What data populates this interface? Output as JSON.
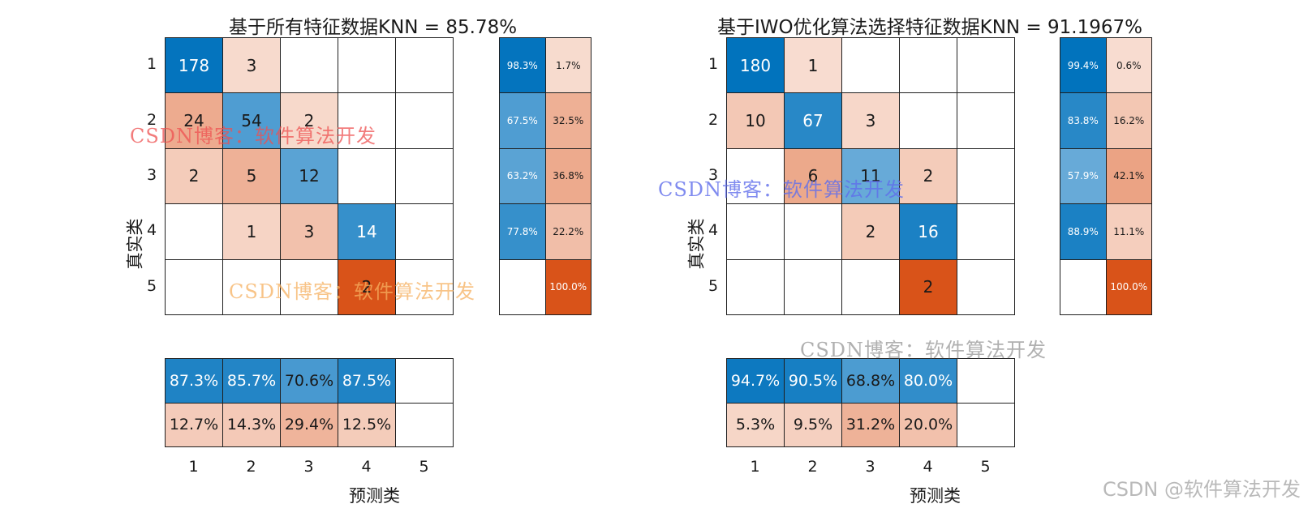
{
  "chart_data": [
    {
      "type": "heatmap",
      "title": "基于所有特征数据KNN =  85.78%",
      "xlabel": "预测类",
      "ylabel": "真实类",
      "classes": [
        "1",
        "2",
        "3",
        "4",
        "5"
      ],
      "matrix": [
        [
          178,
          3,
          null,
          null,
          null
        ],
        [
          24,
          54,
          2,
          null,
          null
        ],
        [
          2,
          5,
          12,
          null,
          null
        ],
        [
          null,
          1,
          3,
          14,
          null
        ],
        [
          null,
          null,
          null,
          2,
          null
        ]
      ],
      "row_summary": [
        [
          "98.3%",
          "1.7%"
        ],
        [
          "67.5%",
          "32.5%"
        ],
        [
          "63.2%",
          "36.8%"
        ],
        [
          "77.8%",
          "22.2%"
        ],
        [
          "",
          "100.0%"
        ]
      ],
      "col_summary": {
        "correct": [
          "87.3%",
          "85.7%",
          "70.6%",
          "87.5%",
          ""
        ],
        "incorrect": [
          "12.7%",
          "14.3%",
          "29.4%",
          "12.5%",
          ""
        ]
      }
    },
    {
      "type": "heatmap",
      "title": "基于IWO优化算法选择特征数据KNN =  91.1967%",
      "xlabel": "预测类",
      "ylabel": "真实类",
      "classes": [
        "1",
        "2",
        "3",
        "4",
        "5"
      ],
      "matrix": [
        [
          180,
          1,
          null,
          null,
          null
        ],
        [
          10,
          67,
          3,
          null,
          null
        ],
        [
          null,
          6,
          11,
          2,
          null
        ],
        [
          null,
          null,
          2,
          16,
          null
        ],
        [
          null,
          null,
          null,
          2,
          null
        ]
      ],
      "row_summary": [
        [
          "99.4%",
          "0.6%"
        ],
        [
          "83.8%",
          "16.2%"
        ],
        [
          "57.9%",
          "42.1%"
        ],
        [
          "88.9%",
          "11.1%"
        ],
        [
          "",
          "100.0%"
        ]
      ],
      "col_summary": {
        "correct": [
          "94.7%",
          "90.5%",
          "68.8%",
          "80.0%",
          ""
        ],
        "incorrect": [
          "5.3%",
          "9.5%",
          "31.2%",
          "20.0%",
          ""
        ]
      }
    }
  ],
  "watermarks": {
    "red": "CSDN博客：软件算法开发",
    "orange": "CSDN博客：软件算法开发",
    "blue": "CSDN博客：软件算法开发",
    "gray": "CSDN博客：软件算法开发"
  },
  "credit": "CSDN @软件算法开发",
  "colors": {
    "blue_dark": "#0072bd",
    "red_dark": "#d95319",
    "border": "#1f1f1f"
  }
}
